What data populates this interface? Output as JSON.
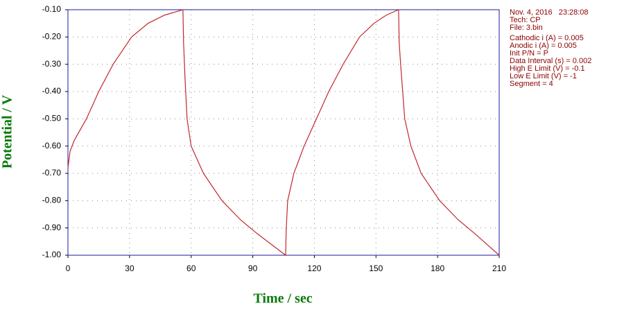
{
  "chart_data": {
    "type": "line",
    "x_label": "Time / sec",
    "y_label": "Potential / V",
    "x": [
      0,
      1,
      3,
      9,
      15,
      22,
      31,
      39,
      47,
      56,
      56.3,
      57,
      58,
      60,
      66,
      75,
      84,
      92,
      99,
      106,
      106.3,
      107,
      110,
      115,
      121,
      127,
      134,
      142,
      149,
      155,
      161,
      161.3,
      162,
      164,
      167,
      172,
      181,
      190,
      198,
      204,
      210
    ],
    "series": [
      {
        "name": "Potential",
        "color": "#c0272d",
        "values": [
          -0.68,
          -0.62,
          -0.58,
          -0.5,
          -0.4,
          -0.3,
          -0.2,
          -0.15,
          -0.12,
          -0.1,
          -0.22,
          -0.35,
          -0.5,
          -0.6,
          -0.7,
          -0.8,
          -0.87,
          -0.92,
          -0.96,
          -1.0,
          -0.9,
          -0.8,
          -0.7,
          -0.6,
          -0.5,
          -0.4,
          -0.3,
          -0.2,
          -0.15,
          -0.12,
          -0.1,
          -0.22,
          -0.3,
          -0.5,
          -0.6,
          -0.7,
          -0.8,
          -0.87,
          -0.92,
          -0.96,
          -1.0
        ]
      }
    ],
    "xlim": [
      0,
      210
    ],
    "xticks": [
      0,
      30,
      60,
      90,
      120,
      150,
      180,
      210
    ],
    "ylim": [
      -1.0,
      -0.1
    ],
    "yticks": [
      {
        "value": -1.0,
        "label": "-1.00"
      },
      {
        "value": -0.9,
        "label": "-0.90"
      },
      {
        "value": -0.8,
        "label": "-0.80"
      },
      {
        "value": -0.7,
        "label": "-0.70"
      },
      {
        "value": -0.6,
        "label": "-0.60"
      },
      {
        "value": -0.5,
        "label": "-0.50"
      },
      {
        "value": -0.4,
        "label": "-0.40"
      },
      {
        "value": -0.3,
        "label": "-0.30"
      },
      {
        "value": -0.2,
        "label": "-0.20"
      },
      {
        "value": -0.1,
        "label": "-0.10"
      }
    ],
    "grid": true,
    "annotations": [
      "Nov. 4, 2016   23:28:08",
      "Tech: CP",
      "File: 3.bin",
      "Cathodic i (A) = 0.005",
      "Anodic i (A) = 0.005",
      "Init P/N = P",
      "Data Interval (s) = 0.002",
      "High E Limit (V) = -0.1",
      "Low E Limit (V) = -1",
      "Segment = 4"
    ]
  }
}
